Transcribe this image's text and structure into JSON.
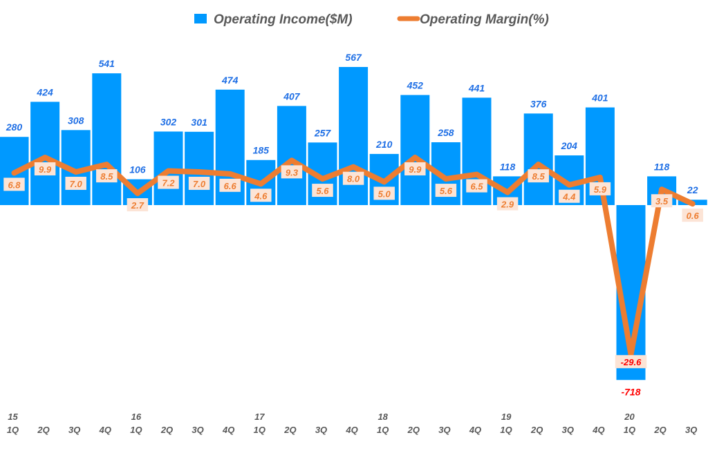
{
  "chart_data": {
    "type": "bar+line",
    "legend": {
      "placement": "top-center",
      "entries": [
        "Operating Income($M)",
        "Operating Margin(%)"
      ]
    },
    "categories": [
      "1Q",
      "2Q",
      "3Q",
      "4Q",
      "1Q",
      "2Q",
      "3Q",
      "4Q",
      "1Q",
      "2Q",
      "3Q",
      "4Q",
      "1Q",
      "2Q",
      "3Q",
      "4Q",
      "1Q",
      "2Q",
      "3Q",
      "4Q",
      "1Q",
      "2Q",
      "3Q"
    ],
    "year_labels": [
      "15",
      "",
      "",
      "",
      "16",
      "",
      "",
      "",
      "17",
      "",
      "",
      "",
      "18",
      "",
      "",
      "",
      "19",
      "",
      "",
      "",
      "20",
      "",
      ""
    ],
    "series": [
      {
        "name": "Operating Income($M)",
        "type": "bar",
        "color": "#0099ff",
        "values": [
          280,
          424,
          308,
          541,
          106,
          302,
          301,
          474,
          185,
          407,
          257,
          567,
          210,
          452,
          258,
          441,
          118,
          376,
          204,
          401,
          -718,
          118,
          22
        ]
      },
      {
        "name": "Operating Margin(%)",
        "type": "line",
        "color": "#ed7d31",
        "values": [
          6.8,
          9.9,
          7.0,
          8.5,
          2.7,
          7.2,
          7.0,
          6.6,
          4.6,
          9.3,
          5.6,
          8.0,
          5.0,
          9.9,
          5.6,
          6.5,
          2.9,
          8.5,
          4.4,
          5.9,
          -29.6,
          3.5,
          0.6
        ]
      }
    ],
    "negative_label_color": "#ff0000",
    "grid": false
  }
}
